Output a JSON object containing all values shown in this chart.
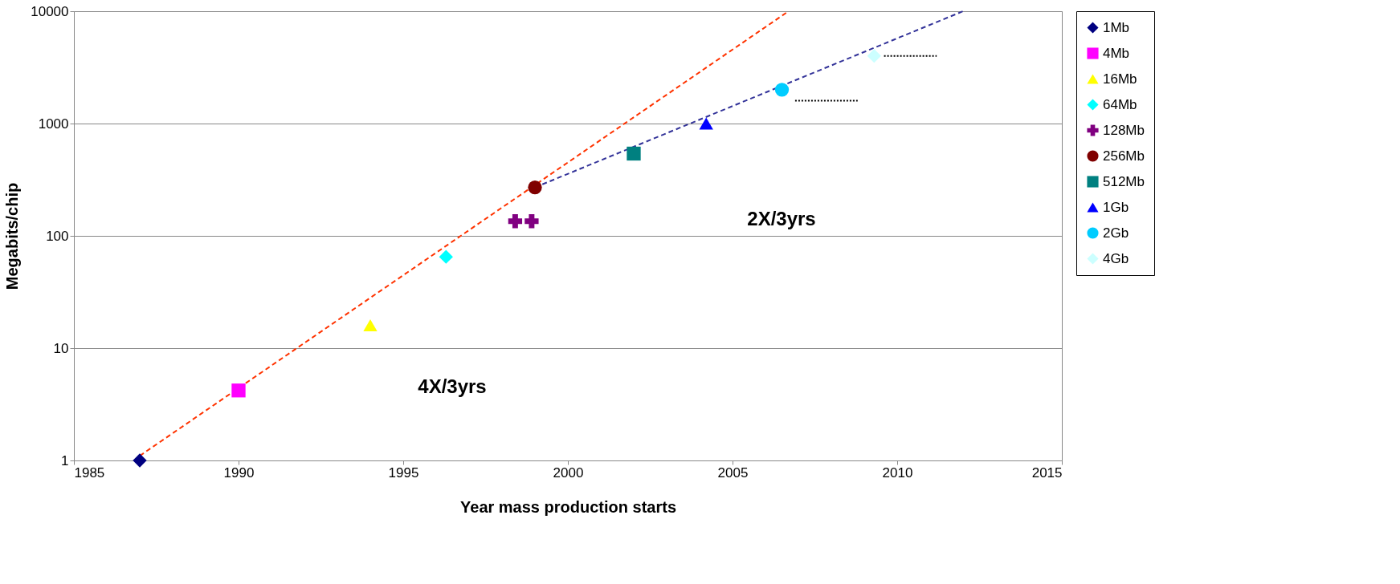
{
  "chart_data": {
    "type": "scatter",
    "xlabel": "Year mass production starts",
    "ylabel": "Megabits/chip",
    "log": "y",
    "xlim": [
      1985,
      2015
    ],
    "xticks": [
      1985,
      1990,
      1995,
      2000,
      2005,
      2010,
      2015
    ],
    "ylim": [
      1,
      10000
    ],
    "yticks": [
      1,
      10,
      100,
      1000,
      10000
    ],
    "grid": "y",
    "legend": "right",
    "series": [
      {
        "name": "1Mb",
        "color": "#000080",
        "marker": "diamond",
        "x": [
          1987
        ],
        "values": [
          1
        ]
      },
      {
        "name": "4Mb",
        "color": "#ff00ff",
        "marker": "square",
        "x": [
          1990
        ],
        "values": [
          4.2
        ]
      },
      {
        "name": "16Mb",
        "color": "#ffff00",
        "marker": "triangle",
        "x": [
          1994
        ],
        "values": [
          16
        ]
      },
      {
        "name": "64Mb",
        "color": "#00ffff",
        "marker": "diamond",
        "x": [
          1996.3
        ],
        "values": [
          65
        ]
      },
      {
        "name": "128Mb",
        "color": "#800080",
        "marker": "cross",
        "x": [
          1998.4,
          1998.9
        ],
        "values": [
          135,
          135
        ]
      },
      {
        "name": "256Mb",
        "color": "#800000",
        "marker": "circle",
        "x": [
          1999
        ],
        "values": [
          270
        ]
      },
      {
        "name": "512Mb",
        "color": "#008080",
        "marker": "square",
        "x": [
          2002
        ],
        "values": [
          540
        ]
      },
      {
        "name": "1Gb",
        "color": "#0000ff",
        "marker": "triangle",
        "x": [
          2004.2
        ],
        "values": [
          1000
        ]
      },
      {
        "name": "2Gb",
        "color": "#00ccff",
        "marker": "circle",
        "x": [
          2006.5
        ],
        "values": [
          2000
        ]
      },
      {
        "name": "4Gb",
        "color": "#ccffff",
        "marker": "diamond",
        "x": [
          2009.3
        ],
        "values": [
          4000
        ]
      },
      {
        "type": "line",
        "color": "#ff3300",
        "line_style": "dashed",
        "x": [
          1987,
          2006.7
        ],
        "values": [
          1.1,
          10000
        ]
      },
      {
        "type": "line",
        "color": "#333399",
        "line_style": "dashed",
        "x": [
          1999,
          2012
        ],
        "values": [
          270,
          10000
        ]
      },
      {
        "type": "line",
        "color": "#000000",
        "line_style": "dotted",
        "x": [
          2006.9,
          2008.8
        ],
        "values": [
          1600,
          1600
        ]
      },
      {
        "type": "line",
        "color": "#000000",
        "line_style": "dotted",
        "x": [
          2009.6,
          2011.2
        ],
        "values": [
          4000,
          4000
        ]
      }
    ],
    "annotations": [
      "4X/3yrs",
      "2X/3yrs"
    ]
  }
}
